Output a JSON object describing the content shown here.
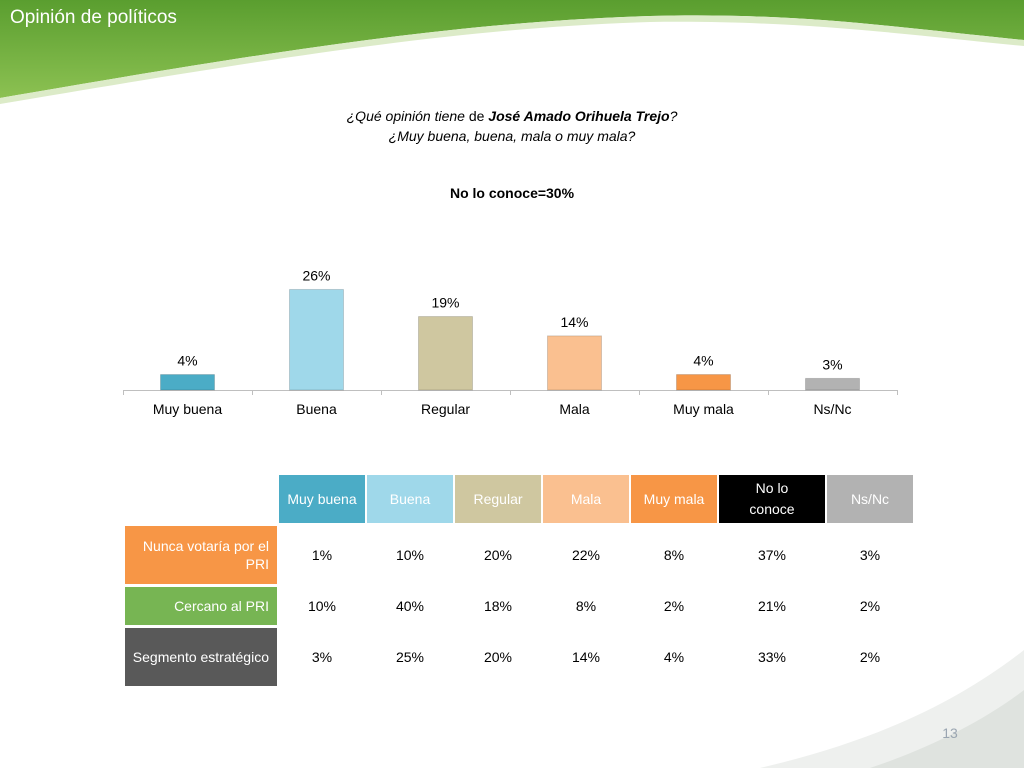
{
  "slide": {
    "title": "Opinión de políticos",
    "page_number": "13"
  },
  "colors": {
    "band_green": "#6aaf3d",
    "muy_buena": "#4bacc6",
    "buena": "#9fd8ea",
    "regular": "#cfc7a0",
    "mala": "#fac090",
    "muy_mala": "#f79646",
    "no_lo_conoce": "#000000",
    "ns_nc": "#b2b2b2",
    "row_nunca": "#f79646",
    "row_cercano": "#77b553",
    "row_segmento": "#595959"
  },
  "question": {
    "part1": "¿Qué opinión tiene",
    "de": "de",
    "name": "José Amado Orihuela Trejo",
    "end": "?",
    "line2": "¿Muy buena, buena, mala o muy mala?"
  },
  "chart_data": {
    "type": "bar",
    "title": "No lo conoce=30%",
    "categories": [
      "Muy buena",
      "Buena",
      "Regular",
      "Mala",
      "Muy mala",
      "Ns/Nc"
    ],
    "values": [
      4,
      26,
      19,
      14,
      4,
      3
    ],
    "value_labels": [
      "4%",
      "26%",
      "19%",
      "14%",
      "4%",
      "3%"
    ],
    "colors": [
      "#4bacc6",
      "#9fd8ea",
      "#cfc7a0",
      "#fac090",
      "#f79646",
      "#b2b2b2"
    ],
    "ylim": [
      0,
      30
    ],
    "xlabel": "",
    "ylabel": "",
    "grid": false,
    "legend": "none"
  },
  "table": {
    "headers": [
      "Muy buena",
      "Buena",
      "Regular",
      "Mala",
      "Muy mala",
      "No lo conoce",
      "Ns/Nc"
    ],
    "rows": [
      {
        "label": "Nunca votaría por el PRI",
        "values": [
          "1%",
          "10%",
          "20%",
          "22%",
          "8%",
          "37%",
          "3%"
        ]
      },
      {
        "label": "Cercano al PRI",
        "values": [
          "10%",
          "40%",
          "18%",
          "8%",
          "2%",
          "21%",
          "2%"
        ]
      },
      {
        "label": "Segmento estratégico",
        "values": [
          "3%",
          "25%",
          "20%",
          "14%",
          "4%",
          "33%",
          "2%"
        ]
      }
    ]
  }
}
